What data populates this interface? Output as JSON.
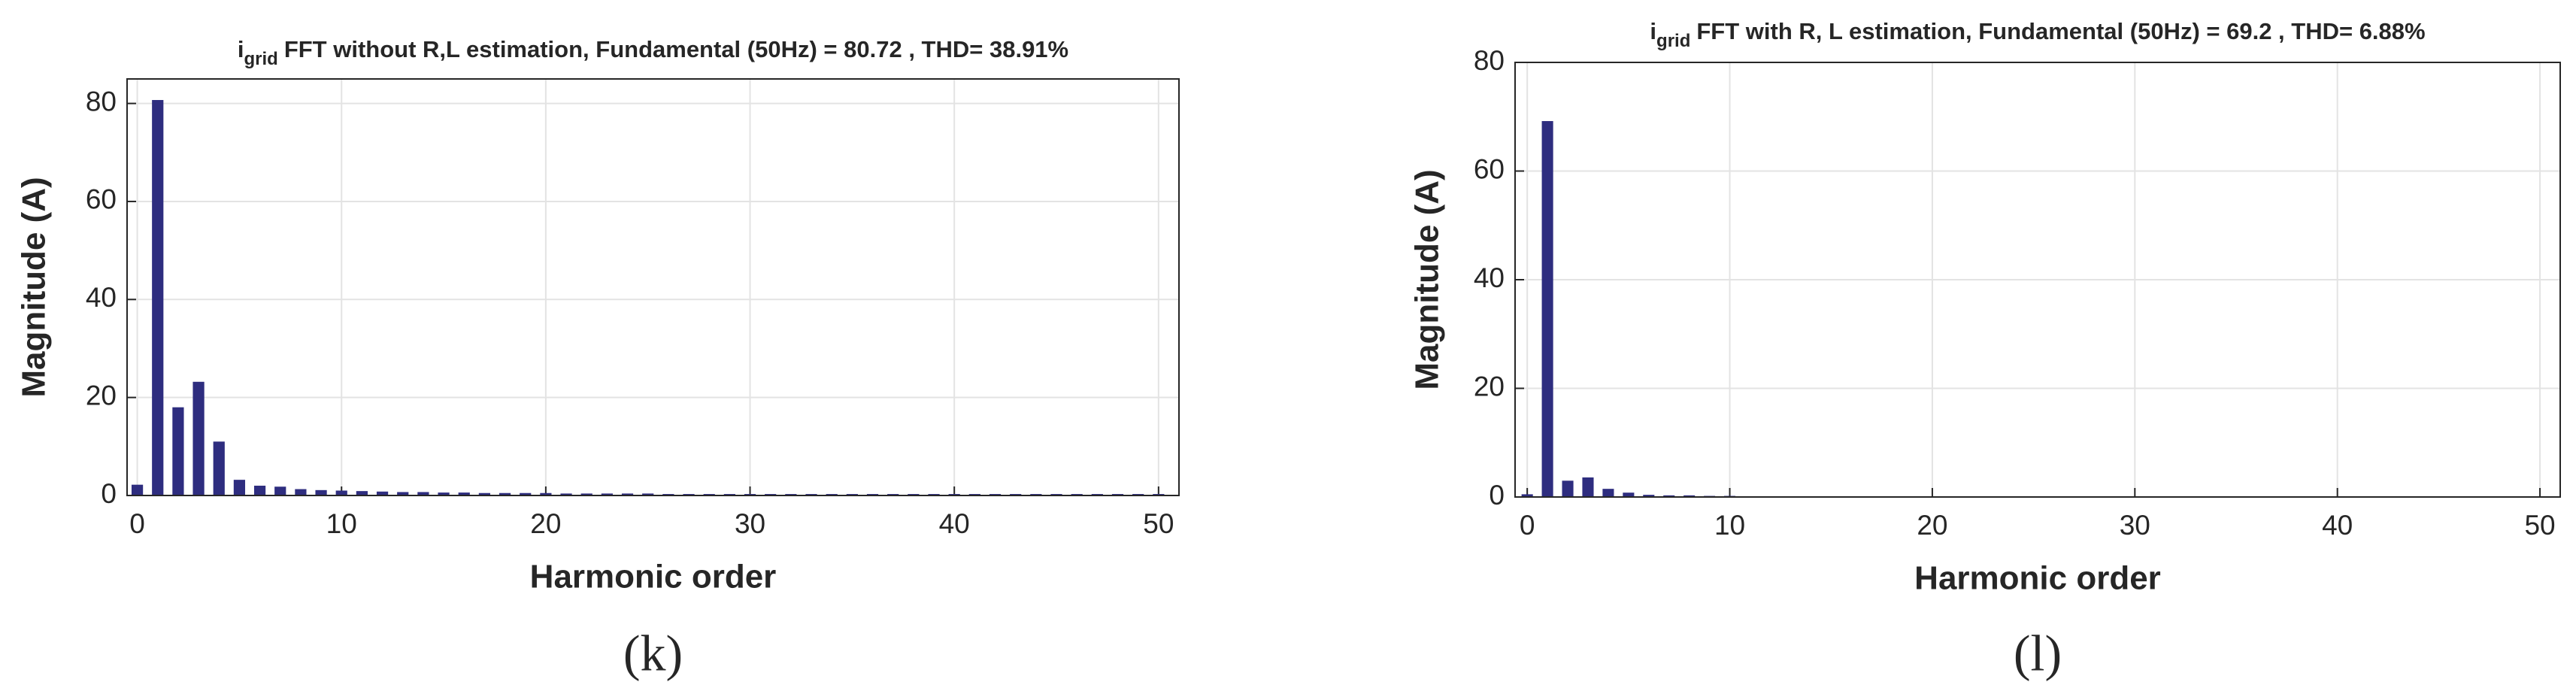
{
  "chart_data": [
    {
      "type": "bar",
      "title": {
        "main": "i",
        "sub": "grid",
        "rest": "FFT without R,L estimation, Fundamental (50Hz) = 80.72 , THD= 38.91%"
      },
      "xlabel": "Harmonic order",
      "ylabel": "Magnitude (A)",
      "caption": "(k)",
      "x": [
        0,
        1,
        2,
        3,
        4,
        5,
        6,
        7,
        8,
        9,
        10,
        11,
        12,
        13,
        14,
        15,
        16,
        17,
        18,
        19,
        20,
        21,
        22,
        23,
        24,
        25,
        26,
        27,
        28,
        29,
        30,
        31,
        32,
        33,
        34,
        35,
        36,
        37,
        38,
        39,
        40,
        41,
        42,
        43,
        44,
        45,
        46,
        47,
        48,
        49,
        50
      ],
      "values": [
        2.2,
        80.7,
        18,
        23.2,
        11,
        3.2,
        2,
        1.8,
        1.3,
        1.1,
        1.0,
        0.9,
        0.8,
        0.7,
        0.7,
        0.6,
        0.6,
        0.5,
        0.5,
        0.5,
        0.5,
        0.4,
        0.4,
        0.4,
        0.4,
        0.4,
        0.3,
        0.3,
        0.3,
        0.3,
        0.3,
        0.3,
        0.3,
        0.3,
        0.3,
        0.3,
        0.3,
        0.3,
        0.3,
        0.3,
        0.3,
        0.3,
        0.3,
        0.3,
        0.3,
        0.3,
        0.3,
        0.3,
        0.3,
        0.3,
        0.3
      ],
      "color": "#2e2d7f",
      "xlim": [
        -0.5,
        51
      ],
      "ylim": [
        0,
        85
      ],
      "xticks": [
        0,
        10,
        20,
        30,
        40,
        50
      ],
      "yticks": [
        0,
        20,
        40,
        60,
        80
      ],
      "grid": true
    },
    {
      "type": "bar",
      "title": {
        "main": "i",
        "sub": "grid",
        "rest": "FFT with R, L estimation, Fundamental (50Hz) = 69.2 , THD= 6.88%"
      },
      "xlabel": "Harmonic order",
      "ylabel": "Magnitude (A)",
      "caption": "(l)",
      "x": [
        0,
        1,
        2,
        3,
        4,
        5,
        6,
        7,
        8,
        9,
        10,
        11,
        12,
        13,
        14,
        15,
        16,
        17,
        18,
        19,
        20,
        21,
        22,
        23,
        24,
        25,
        26,
        27,
        28,
        29,
        30,
        31,
        32,
        33,
        34,
        35,
        36,
        37,
        38,
        39,
        40,
        41,
        42,
        43,
        44,
        45,
        46,
        47,
        48,
        49,
        50
      ],
      "values": [
        0.5,
        69.2,
        3,
        3.6,
        1.5,
        0.8,
        0.4,
        0.3,
        0.3,
        0.2,
        0.2,
        0.1,
        0.1,
        0.1,
        0.1,
        0.1,
        0.1,
        0.1,
        0.1,
        0.1,
        0.1,
        0.1,
        0.1,
        0.1,
        0.1,
        0.1,
        0.1,
        0.1,
        0.1,
        0.1,
        0.1,
        0.1,
        0.1,
        0.1,
        0.1,
        0.1,
        0.1,
        0.1,
        0.1,
        0.1,
        0.1,
        0.1,
        0.1,
        0.1,
        0.1,
        0.1,
        0.1,
        0.1,
        0.1,
        0.1,
        0.1
      ],
      "color": "#2e2d7f",
      "xlim": [
        -0.6,
        51
      ],
      "ylim": [
        0,
        80
      ],
      "xticks": [
        0,
        10,
        20,
        30,
        40,
        50
      ],
      "yticks": [
        0,
        20,
        40,
        60,
        80
      ],
      "grid": true
    }
  ]
}
